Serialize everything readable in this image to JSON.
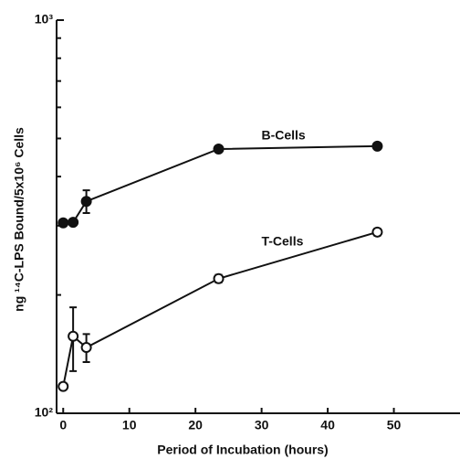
{
  "chart_data": {
    "type": "line",
    "y_label": "ng ¹⁴C-LPS Bound/5x10⁶ Cells",
    "x_label": "Period of Incubation (hours)",
    "log_y": true,
    "xlim": [
      -1,
      60
    ],
    "xticks": [
      0,
      10,
      20,
      30,
      40,
      50
    ],
    "ylim": [
      100,
      1000
    ],
    "yticks": [
      {
        "value": 100,
        "label": "10²"
      },
      {
        "value": 1000,
        "label": "10³"
      }
    ],
    "yminorticks": [
      200,
      300,
      400,
      500,
      600,
      700,
      800,
      900
    ],
    "x": [
      0,
      1.5,
      3.5,
      23.5,
      47.5
    ],
    "series": [
      {
        "name": "B-Cells",
        "color": "#111111",
        "filled": true,
        "values": [
          305,
          306,
          346,
          470,
          478
        ],
        "errors": [
          null,
          null,
          23,
          8,
          8
        ]
      },
      {
        "name": "T-Cells",
        "color": "#111111",
        "filled": false,
        "values": [
          117,
          157,
          147,
          220,
          289
        ],
        "errors": [
          null,
          29,
          12,
          5,
          6
        ]
      }
    ]
  }
}
